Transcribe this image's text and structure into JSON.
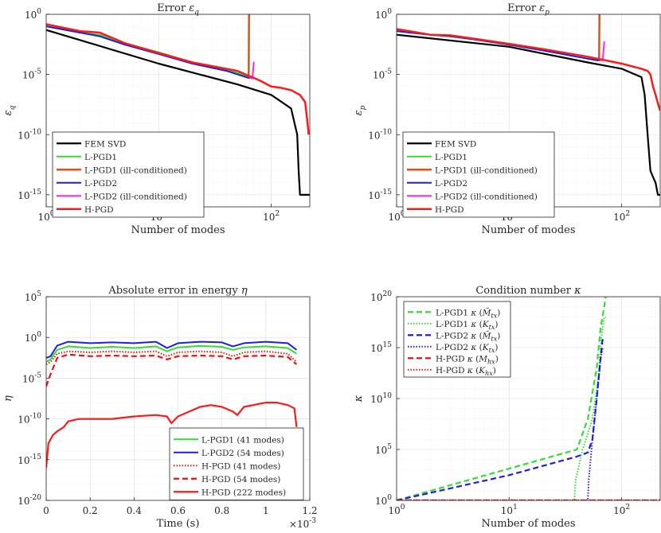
{
  "chart_data": [
    {
      "id": "eq",
      "type": "line",
      "title": "Error ε_q",
      "title_text": "Error ",
      "title_sym": "ε",
      "title_sub": "q",
      "xlabel": "Number of modes",
      "ylabel_sym": "ε",
      "ylabel_sub": "q",
      "xscale": "log",
      "yscale": "log",
      "xlim": [
        1,
        220
      ],
      "ylim": [
        1e-16,
        1
      ],
      "xticks": [
        {
          "v": 1,
          "base": "10",
          "exp": "0"
        },
        {
          "v": 10,
          "base": "10",
          "exp": "1"
        },
        {
          "v": 100,
          "base": "10",
          "exp": "2"
        }
      ],
      "yticks": [
        {
          "v": 1,
          "base": "10",
          "exp": "0"
        },
        {
          "v": 1e-05,
          "base": "10",
          "exp": "-5"
        },
        {
          "v": 1e-10,
          "base": "10",
          "exp": "-10"
        },
        {
          "v": 1e-15,
          "base": "10",
          "exp": "-15"
        }
      ],
      "legend": "lower-left",
      "series": [
        {
          "name": "FEM SVD",
          "color": "#000000",
          "width": 2.2,
          "dash": "",
          "x": [
            1,
            10,
            50,
            100,
            150,
            170,
            175,
            180,
            220
          ],
          "y": [
            0.05,
            8e-05,
            1.5e-06,
            2e-07,
            1.5e-08,
            1e-10,
            1e-13,
            1e-15,
            1e-15
          ]
        },
        {
          "name": "L-PGD1",
          "color": "#33dd33",
          "width": 2,
          "dash": "",
          "x": [
            1,
            2,
            3,
            5,
            10,
            20,
            40,
            60,
            63
          ],
          "y": [
            0.1,
            0.03,
            0.02,
            0.004,
            0.0007,
            0.0001,
            2.5e-05,
            8e-06,
            7e-06
          ]
        },
        {
          "name": "L-PGD1 (ill-conditioned)",
          "color": "#d95319",
          "width": 2.5,
          "dash": "",
          "x": [
            63,
            63.5,
            64,
            64.5,
            65
          ],
          "y": [
            8e-06,
            0.9,
            1,
            1,
            1
          ]
        },
        {
          "name": "L-PGD2",
          "color": "#1f1fdd",
          "width": 2,
          "dash": "",
          "x": [
            1,
            2,
            3,
            5,
            10,
            20,
            40,
            60,
            64
          ],
          "y": [
            0.1,
            0.03,
            0.015,
            0.003,
            0.0005,
            8e-05,
            2e-05,
            6e-06,
            5e-06
          ]
        },
        {
          "name": "L-PGD2 (ill-conditioned)",
          "color": "#ff22ff",
          "width": 2,
          "dash": "",
          "x": [
            64,
            68,
            69,
            70,
            71
          ],
          "y": [
            5e-06,
            5e-06,
            2e-05,
            0.0001,
            0.0001
          ]
        },
        {
          "name": "H-PGD",
          "color": "#ff1a1a",
          "width": 2.5,
          "dash": "",
          "x": [
            1,
            2,
            3,
            5,
            10,
            20,
            50,
            80,
            100,
            120,
            150,
            180,
            200,
            210,
            215
          ],
          "y": [
            0.15,
            0.04,
            0.03,
            0.004,
            0.0006,
            0.0001,
            2e-05,
            3e-06,
            1e-06,
            8e-07,
            5e-07,
            2e-07,
            5e-08,
            1e-09,
            1e-10
          ]
        }
      ]
    },
    {
      "id": "ep",
      "type": "line",
      "title": "Error ε_p",
      "title_text": "Error ",
      "title_sym": "ε",
      "title_sub": "p",
      "xlabel": "Number of modes",
      "ylabel_sym": "ε",
      "ylabel_sub": "p",
      "xscale": "log",
      "yscale": "log",
      "xlim": [
        1,
        220
      ],
      "ylim": [
        1e-16,
        1
      ],
      "xticks": [
        {
          "v": 1,
          "base": "10",
          "exp": "0"
        },
        {
          "v": 10,
          "base": "10",
          "exp": "1"
        },
        {
          "v": 100,
          "base": "10",
          "exp": "2"
        }
      ],
      "yticks": [
        {
          "v": 1,
          "base": "10",
          "exp": "0"
        },
        {
          "v": 1e-05,
          "base": "10",
          "exp": "-5"
        },
        {
          "v": 1e-10,
          "base": "10",
          "exp": "-10"
        },
        {
          "v": 1e-15,
          "base": "10",
          "exp": "-15"
        }
      ],
      "legend": "lower-left",
      "series": [
        {
          "name": "FEM SVD",
          "color": "#000000",
          "width": 2.2,
          "dash": "",
          "x": [
            1,
            10,
            50,
            100,
            150,
            160,
            170,
            180,
            190,
            200,
            210,
            220
          ],
          "y": [
            0.02,
            0.002,
            0.0001,
            3e-05,
            6e-06,
            2e-07,
            1e-10,
            1e-13,
            3e-14,
            1e-14,
            1e-15,
            1e-15
          ]
        },
        {
          "name": "L-PGD1",
          "color": "#33dd33",
          "width": 2,
          "dash": "",
          "x": [
            1,
            2,
            3,
            5,
            10,
            20,
            40,
            60,
            63
          ],
          "y": [
            0.04,
            0.02,
            0.015,
            0.008,
            0.003,
            0.001,
            0.0003,
            0.00015,
            0.00015
          ]
        },
        {
          "name": "L-PGD1 (ill-conditioned)",
          "color": "#d95319",
          "width": 2.5,
          "dash": "",
          "x": [
            63,
            63.5,
            64,
            64.5,
            65
          ],
          "y": [
            0.0002,
            0.9,
            1,
            1,
            1
          ]
        },
        {
          "name": "L-PGD2",
          "color": "#1f1fdd",
          "width": 2,
          "dash": "",
          "x": [
            1,
            2,
            3,
            5,
            10,
            20,
            40,
            60,
            64
          ],
          "y": [
            0.04,
            0.02,
            0.015,
            0.008,
            0.003,
            0.001,
            0.0003,
            0.00015,
            0.00015
          ]
        },
        {
          "name": "L-PGD2 (ill-conditioned)",
          "color": "#ff22ff",
          "width": 2,
          "dash": "",
          "x": [
            64,
            68,
            69,
            70,
            71
          ],
          "y": [
            0.00015,
            0.00015,
            0.001,
            0.005,
            0.005
          ]
        },
        {
          "name": "H-PGD",
          "color": "#ff1a1a",
          "width": 2.5,
          "dash": "",
          "x": [
            1,
            2,
            3,
            5,
            10,
            20,
            50,
            100,
            150,
            170,
            180,
            190,
            200,
            210,
            220
          ],
          "y": [
            0.06,
            0.02,
            0.018,
            0.009,
            0.0035,
            0.0013,
            0.0003,
            8e-05,
            3e-05,
            2e-05,
            1e-05,
            1e-06,
            2e-07,
            4e-08,
            1e-08
          ]
        }
      ]
    },
    {
      "id": "eta",
      "type": "line",
      "title": "Absolute error in energy η",
      "title_text": "Absolute error in energy ",
      "title_sym": "η",
      "title_sub": "",
      "xlabel": "Time (s)",
      "ylabel_sym": "η",
      "ylabel_sub": "",
      "xscale": "linear",
      "yscale": "log",
      "xlim": [
        0,
        1.2
      ],
      "ylim": [
        1e-20,
        100000.0
      ],
      "x_multiplier": "×10",
      "x_multiplier_exp": "-3",
      "xticks": [
        {
          "v": 0,
          "base": "0",
          "exp": ""
        },
        {
          "v": 0.2,
          "base": "0.2",
          "exp": ""
        },
        {
          "v": 0.4,
          "base": "0.4",
          "exp": ""
        },
        {
          "v": 0.6,
          "base": "0.6",
          "exp": ""
        },
        {
          "v": 0.8,
          "base": "0.8",
          "exp": ""
        },
        {
          "v": 1,
          "base": "1",
          "exp": ""
        },
        {
          "v": 1.2,
          "base": "1.2",
          "exp": ""
        }
      ],
      "yticks": [
        {
          "v": 100000.0,
          "base": "10",
          "exp": "5"
        },
        {
          "v": 1,
          "base": "10",
          "exp": "0"
        },
        {
          "v": 1e-05,
          "base": "10",
          "exp": "-5"
        },
        {
          "v": 1e-10,
          "base": "10",
          "exp": "-10"
        },
        {
          "v": 1e-15,
          "base": "10",
          "exp": "-15"
        },
        {
          "v": 1e-20,
          "base": "10",
          "exp": "-20"
        }
      ],
      "legend": "lower-right",
      "series": [
        {
          "name": "L-PGD1 (41 modes)",
          "color": "#33dd33",
          "width": 2,
          "dash": "",
          "x": [
            0,
            0.02,
            0.05,
            0.1,
            0.2,
            0.3,
            0.4,
            0.5,
            0.55,
            0.6,
            0.7,
            0.8,
            0.85,
            0.9,
            1.0,
            1.1,
            1.14
          ],
          "y": [
            0.001,
            0.002,
            0.03,
            0.08,
            0.05,
            0.07,
            0.05,
            0.08,
            0.02,
            0.06,
            0.09,
            0.07,
            0.03,
            0.06,
            0.08,
            0.05,
            0.01
          ]
        },
        {
          "name": "L-PGD2 (54 modes)",
          "color": "#1f1fdd",
          "width": 2,
          "dash": "",
          "x": [
            0,
            0.02,
            0.05,
            0.1,
            0.2,
            0.3,
            0.4,
            0.5,
            0.55,
            0.6,
            0.7,
            0.8,
            0.85,
            0.9,
            1.0,
            1.1,
            1.14
          ],
          "y": [
            0.003,
            0.005,
            0.1,
            0.3,
            0.2,
            0.25,
            0.2,
            0.3,
            0.05,
            0.2,
            0.3,
            0.25,
            0.08,
            0.2,
            0.3,
            0.2,
            0.03
          ]
        },
        {
          "name": "H-PGD (41 modes)",
          "color": "#ee1111",
          "width": 2,
          "dash": "1.5 2",
          "x": [
            0,
            0.02,
            0.05,
            0.1,
            0.2,
            0.3,
            0.4,
            0.5,
            0.55,
            0.6,
            0.7,
            0.8,
            0.85,
            0.9,
            1.0,
            1.1,
            1.14
          ],
          "y": [
            0.0005,
            0.001,
            0.01,
            0.02,
            0.015,
            0.02,
            0.015,
            0.02,
            0.005,
            0.015,
            0.02,
            0.015,
            0.005,
            0.015,
            0.02,
            0.01,
            0.001
          ]
        },
        {
          "name": "H-PGD (54 modes)",
          "color": "#ee1111",
          "width": 2.2,
          "dash": "7 4",
          "x": [
            0,
            0.02,
            0.05,
            0.1,
            0.2,
            0.3,
            0.4,
            0.5,
            0.55,
            0.6,
            0.7,
            0.8,
            0.85,
            0.9,
            1.0,
            1.1,
            1.14
          ],
          "y": [
            1e-06,
            3e-05,
            0.003,
            0.008,
            0.005,
            0.006,
            0.005,
            0.006,
            0.002,
            0.005,
            0.006,
            0.005,
            0.002,
            0.005,
            0.006,
            0.004,
            0.0005
          ]
        },
        {
          "name": "H-PGD (222 modes)",
          "color": "#ff1a1a",
          "width": 2.2,
          "dash": "",
          "x": [
            0,
            0.01,
            0.03,
            0.05,
            0.08,
            0.1,
            0.15,
            0.2,
            0.3,
            0.4,
            0.5,
            0.55,
            0.57,
            0.6,
            0.7,
            0.75,
            0.8,
            0.85,
            0.87,
            0.9,
            1.0,
            1.05,
            1.1,
            1.13,
            1.14
          ],
          "y": [
            1e-16,
            1e-13,
            1e-12,
            3e-12,
            1e-11,
            5e-11,
            1e-10,
            1e-10,
            1e-10,
            2e-10,
            3e-10,
            2e-10,
            3e-11,
            2e-10,
            3e-09,
            5e-09,
            3e-09,
            8e-10,
            3e-10,
            3e-09,
            1e-08,
            1e-08,
            5e-09,
            2e-09,
            1e-11
          ]
        }
      ]
    },
    {
      "id": "kappa",
      "type": "line",
      "title": "Condition number κ",
      "title_text": "Condition number ",
      "title_sym": "κ",
      "title_sub": "",
      "xlabel": "Number of modes",
      "ylabel_sym": "κ",
      "ylabel_sub": "",
      "xscale": "log",
      "yscale": "log",
      "xlim": [
        1,
        220
      ],
      "ylim": [
        1,
        1e+20
      ],
      "xticks": [
        {
          "v": 1,
          "base": "10",
          "exp": "0"
        },
        {
          "v": 10,
          "base": "10",
          "exp": "1"
        },
        {
          "v": 100,
          "base": "10",
          "exp": "2"
        }
      ],
      "yticks": [
        {
          "v": 1e+20,
          "base": "10",
          "exp": "20"
        },
        {
          "v": 1000000000000000.0,
          "base": "10",
          "exp": "15"
        },
        {
          "v": 10000000000.0,
          "base": "10",
          "exp": "10"
        },
        {
          "v": 100000.0,
          "base": "10",
          "exp": "5"
        },
        {
          "v": 1,
          "base": "10",
          "exp": "0"
        }
      ],
      "legend": "top-left",
      "series": [
        {
          "name": "L-PGD1 κ (M̄_tx)",
          "sym": "M̄",
          "sub": "tx",
          "bar": true,
          "color": "#33dd33",
          "width": 2.2,
          "dash": "7 4",
          "x": [
            1,
            40,
            50,
            60,
            65,
            70,
            72
          ],
          "y": [
            1,
            100000.0,
            100000000.0,
            10000000000000.0,
            1e+17,
            1e+19,
            1e+20
          ]
        },
        {
          "name": "L-PGD1 κ (K_tx)",
          "sym": "K",
          "sub": "tx",
          "bar": false,
          "color": "#33dd33",
          "width": 2,
          "dash": "1.5 2",
          "x": [
            1,
            38,
            39,
            45,
            55,
            62,
            66,
            70,
            72
          ],
          "y": [
            1,
            1,
            100,
            100000.0,
            100000000.0,
            1000000000000.0,
            1e+16,
            1e+18,
            1e+18
          ]
        },
        {
          "name": "L-PGD2 κ (M̄_tx)",
          "sym": "M̄",
          "sub": "tx",
          "bar": true,
          "color": "#1f1fdd",
          "width": 2.2,
          "dash": "7 4",
          "x": [
            1,
            10,
            40,
            50,
            55,
            60,
            65,
            68
          ],
          "y": [
            1,
            300,
            20000.0,
            50000.0,
            1000000.0,
            10000000000.0,
            100000000000000.0,
            1e+16
          ]
        },
        {
          "name": "L-PGD2 κ (K_tx)",
          "sym": "K",
          "sub": "tx",
          "bar": false,
          "color": "#1f1fdd",
          "width": 2,
          "dash": "1.5 2",
          "x": [
            1,
            50,
            51,
            55,
            60,
            65,
            68
          ],
          "y": [
            1,
            1,
            100,
            1000000.0,
            10000000000.0,
            100000000000000.0,
            1000000000000000.0
          ]
        },
        {
          "name": "H-PGD κ (M_hx)",
          "sym": "M",
          "sub": "hx",
          "bar": false,
          "color": "#ee1111",
          "width": 2.2,
          "dash": "7 4",
          "x": [
            1,
            220
          ],
          "y": [
            1,
            1
          ]
        },
        {
          "name": "H-PGD κ (K_hx)",
          "sym": "K",
          "sub": "hx",
          "bar": false,
          "color": "#ee1111",
          "width": 2,
          "dash": "1.5 2",
          "x": [
            1,
            220
          ],
          "y": [
            1.05,
            1.05
          ]
        }
      ]
    }
  ]
}
